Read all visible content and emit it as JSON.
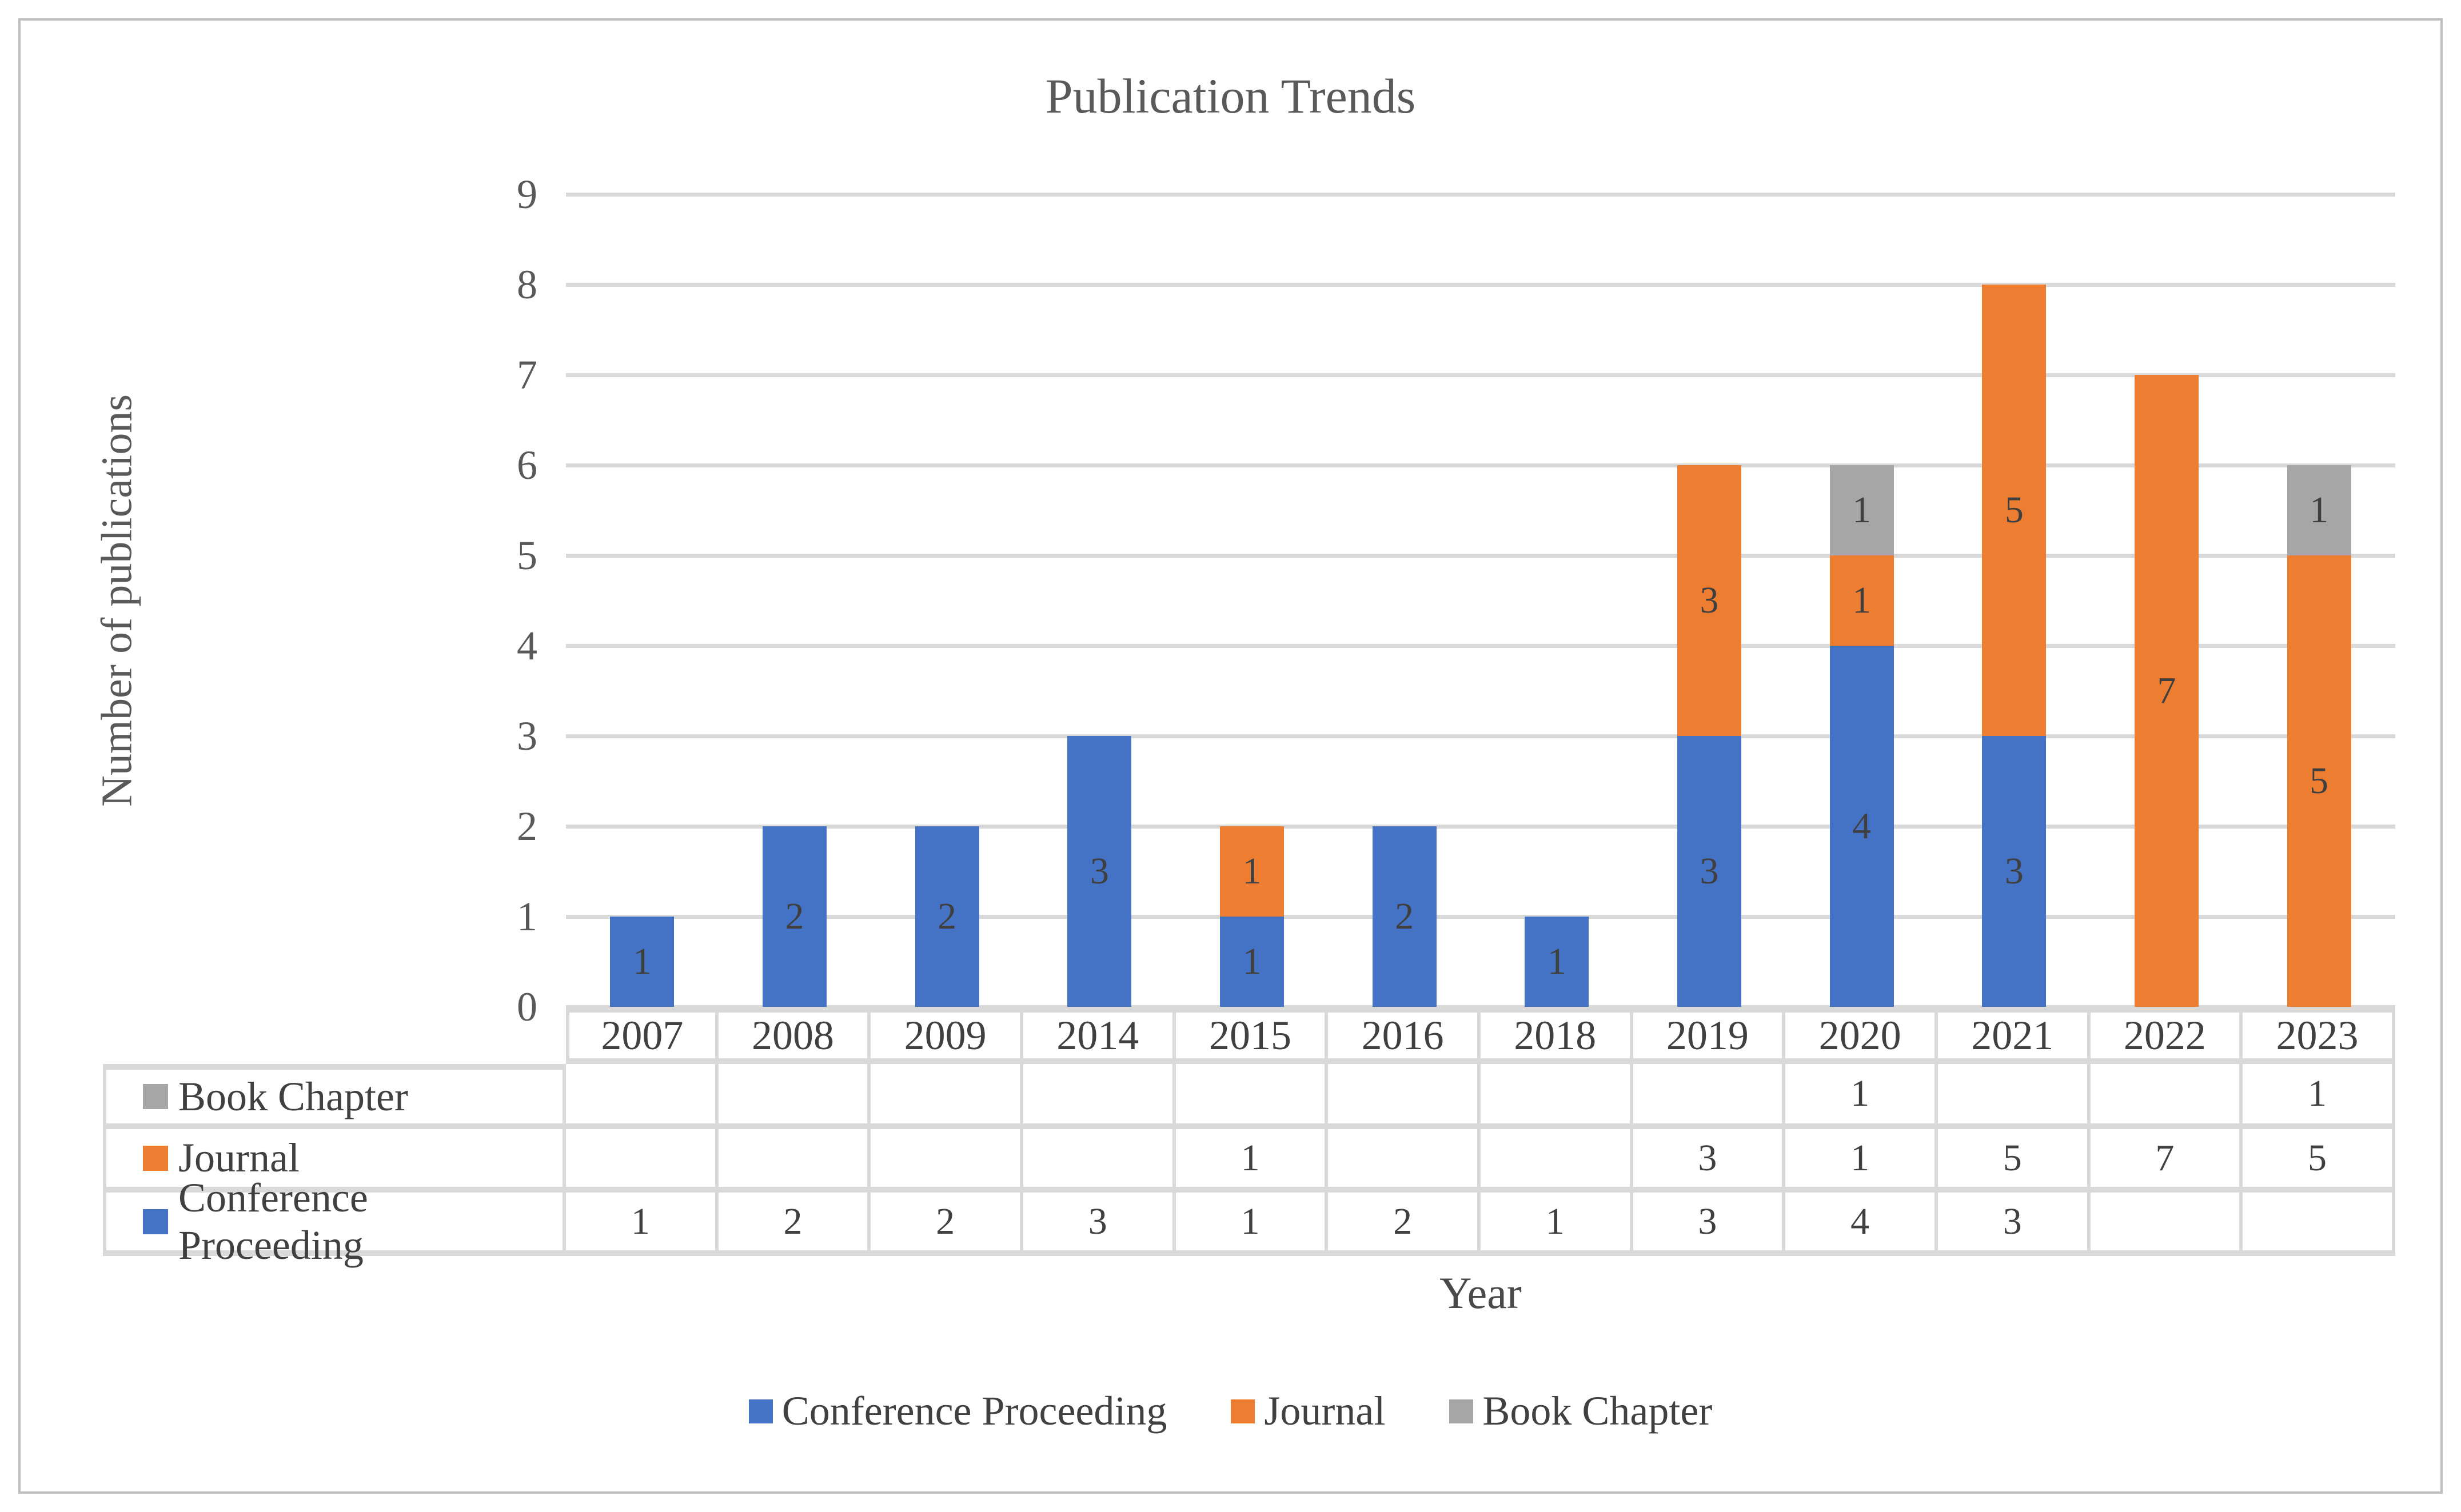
{
  "figure": {
    "background": "#FFFFFF",
    "border_color": "#BFBFBF"
  },
  "chart_data": {
    "type": "bar",
    "stacked": true,
    "title": "Publication Trends",
    "xlabel": "Year",
    "ylabel": "Number of publications",
    "ylim": [
      0,
      9
    ],
    "ytick_interval": 1,
    "grid": true,
    "legend_position": "bottom",
    "show_data_table": true,
    "categories": [
      "2007",
      "2008",
      "2009",
      "2014",
      "2015",
      "2016",
      "2018",
      "2019",
      "2020",
      "2021",
      "2022",
      "2023"
    ],
    "series": [
      {
        "name": "Conference Proceeding",
        "color": "#4472C4",
        "values": [
          1,
          2,
          2,
          3,
          1,
          2,
          1,
          3,
          4,
          3,
          null,
          null
        ]
      },
      {
        "name": "Journal",
        "color": "#ED7D31",
        "values": [
          null,
          null,
          null,
          null,
          1,
          null,
          null,
          3,
          1,
          5,
          7,
          5
        ]
      },
      {
        "name": "Book Chapter",
        "color": "#A6A6A6",
        "values": [
          null,
          null,
          null,
          null,
          null,
          null,
          null,
          null,
          1,
          null,
          null,
          1
        ]
      }
    ],
    "table_rows_top_to_bottom": [
      "Book Chapter",
      "Journal",
      "Conference Proceeding"
    ]
  },
  "y_tick_labels": [
    "0",
    "1",
    "2",
    "3",
    "4",
    "5",
    "6",
    "7",
    "8",
    "9"
  ],
  "colors": {
    "conference_proceeding": "#4472C4",
    "journal": "#ED7D31",
    "book_chapter": "#A6A6A6",
    "grid_line": "#D9D9D9",
    "axis_text": "#595959",
    "table_text": "#404040",
    "value_label": "#3F3F3F",
    "table_border": "#D9D9D9",
    "figure_border": "#BFBFBF"
  },
  "legend": {
    "items": [
      {
        "label": "Conference Proceeding",
        "color": "#4472C4"
      },
      {
        "label": "Journal",
        "color": "#ED7D31"
      },
      {
        "label": "Book Chapter",
        "color": "#A6A6A6"
      }
    ]
  }
}
